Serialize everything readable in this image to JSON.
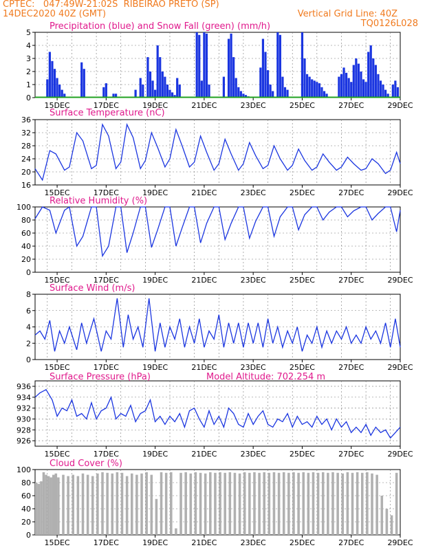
{
  "header": {
    "line1": "CPTEC:   047:49W-21:02S  RIBEIRAO PRETO (SP)",
    "line2": "14DEC2020 40Z (GMT)",
    "grid_note": "Vertical Grid Line: 40Z",
    "model_code": "TQ0126L028",
    "accent_color": "#f07a1e"
  },
  "colors": {
    "series": "#1a35e0",
    "title": "#e0198c",
    "snow": "#1fa01f",
    "cloud": "#b0b0b0"
  },
  "x_ticks": [
    "15DEC",
    "17DEC",
    "19DEC",
    "21DEC",
    "23DEC",
    "25DEC",
    "27DEC",
    "29DEC"
  ],
  "chart_data": [
    {
      "type": "bar",
      "title": "Precipitation (blue) and Snow Fall (green) (mm/h)",
      "x_range_days": [
        14.1,
        29.0
      ],
      "ylim": [
        0,
        5
      ],
      "yticks": [
        "5",
        "4",
        "3",
        "2",
        "1",
        "0"
      ],
      "grid": true,
      "series": [
        {
          "name": "Precipitation (blue)",
          "x": [
            14.6,
            14.7,
            14.8,
            14.9,
            15.0,
            15.1,
            15.2,
            15.3,
            16.0,
            16.1,
            16.9,
            17.0,
            17.3,
            17.4,
            18.2,
            18.4,
            18.5,
            18.7,
            18.8,
            18.9,
            19.0,
            19.1,
            19.2,
            19.3,
            19.4,
            19.5,
            19.6,
            19.7,
            19.8,
            19.9,
            20.0,
            20.7,
            20.8,
            20.9,
            21.0,
            21.1,
            21.2,
            21.8,
            22.0,
            22.1,
            22.2,
            22.3,
            22.4,
            22.5,
            22.6,
            22.7,
            22.8,
            23.3,
            23.4,
            23.5,
            23.6,
            23.7,
            23.8,
            24.0,
            24.1,
            24.2,
            24.3,
            24.4,
            25.0,
            25.1,
            25.2,
            25.3,
            25.4,
            25.5,
            25.6,
            25.7,
            25.8,
            25.9,
            26.0,
            26.5,
            26.6,
            26.7,
            26.8,
            26.9,
            27.0,
            27.1,
            27.2,
            27.3,
            27.4,
            27.5,
            27.6,
            27.7,
            27.8,
            27.9,
            28.0,
            28.1,
            28.2,
            28.3,
            28.4,
            28.5,
            28.7,
            28.8,
            28.9
          ],
          "values": [
            1.4,
            3.5,
            2.8,
            2.2,
            1.5,
            1.0,
            0.6,
            0.3,
            2.7,
            2.2,
            0.8,
            1.1,
            0.3,
            0.3,
            0.6,
            1.5,
            1.0,
            3.1,
            2.0,
            1.3,
            0.6,
            4.0,
            3.1,
            2.0,
            1.6,
            1.0,
            0.6,
            0.4,
            0.2,
            1.5,
            1.0,
            5.0,
            4.8,
            1.3,
            5.0,
            4.9,
            1.0,
            1.6,
            4.5,
            4.9,
            3.1,
            1.5,
            0.8,
            0.5,
            0.3,
            0.2,
            0.1,
            2.3,
            4.5,
            3.5,
            2.1,
            1.0,
            0.5,
            5.0,
            4.8,
            1.6,
            0.8,
            0.6,
            5.0,
            3.0,
            1.8,
            1.6,
            1.4,
            1.3,
            1.2,
            1.1,
            0.8,
            0.5,
            0.3,
            1.6,
            1.8,
            2.3,
            1.9,
            1.5,
            1.2,
            2.5,
            3.0,
            2.6,
            2.0,
            1.4,
            1.2,
            3.5,
            4.0,
            3.0,
            2.5,
            1.8,
            1.3,
            1.0,
            0.6,
            0.3,
            1.0,
            1.3,
            0.8
          ]
        },
        {
          "name": "Snow Fall (green)",
          "x": [
            14.1,
            29.0
          ],
          "values": [
            0,
            0
          ]
        }
      ]
    },
    {
      "type": "line",
      "title": "Surface Temperature (nC)",
      "x_range_days": [
        14.1,
        29.0
      ],
      "ylim": [
        16,
        36
      ],
      "yticks": [
        "36",
        "32",
        "28",
        "24",
        "20",
        "16"
      ],
      "grid": true,
      "series": [
        {
          "name": "",
          "x": [
            14.1,
            14.4,
            14.7,
            14.95,
            15.3,
            15.5,
            15.8,
            16.05,
            16.4,
            16.6,
            16.85,
            17.1,
            17.4,
            17.6,
            17.85,
            18.1,
            18.4,
            18.6,
            18.85,
            19.1,
            19.4,
            19.6,
            19.85,
            20.1,
            20.4,
            20.6,
            20.85,
            21.1,
            21.4,
            21.6,
            21.85,
            22.1,
            22.4,
            22.6,
            22.85,
            23.1,
            23.4,
            23.6,
            23.85,
            24.1,
            24.4,
            24.6,
            24.85,
            25.1,
            25.4,
            25.6,
            25.85,
            26.1,
            26.4,
            26.6,
            26.85,
            27.1,
            27.4,
            27.6,
            27.85,
            28.1,
            28.4,
            28.6,
            28.85,
            29.0
          ],
          "values": [
            21,
            17.5,
            26.5,
            25.5,
            20.5,
            21.5,
            32,
            29.5,
            21,
            22,
            34.5,
            31,
            21,
            23,
            34.5,
            30.5,
            21,
            23.5,
            32,
            27.5,
            21.5,
            24,
            33,
            28,
            21.5,
            23,
            31,
            26,
            20.5,
            22.5,
            30,
            25.5,
            20.5,
            22.5,
            29,
            25,
            21,
            22,
            28,
            24,
            20.5,
            22,
            27,
            23.5,
            20.5,
            21.5,
            25.5,
            23,
            20.5,
            21.5,
            24.5,
            22.5,
            20.5,
            21,
            24,
            22.5,
            19.5,
            20.5,
            26,
            22.5
          ]
        }
      ]
    },
    {
      "type": "line",
      "title": "Relative Humidity (%)",
      "x_range_days": [
        14.1,
        29.0
      ],
      "ylim": [
        0,
        100
      ],
      "yticks": [
        "100",
        "80",
        "60",
        "40",
        "20",
        "0"
      ],
      "grid": true,
      "series": [
        {
          "name": "",
          "x": [
            14.1,
            14.4,
            14.7,
            14.95,
            15.3,
            15.5,
            15.8,
            16.05,
            16.4,
            16.6,
            16.85,
            17.1,
            17.4,
            17.6,
            17.85,
            18.1,
            18.4,
            18.6,
            18.85,
            19.1,
            19.4,
            19.6,
            19.85,
            20.1,
            20.4,
            20.6,
            20.85,
            21.1,
            21.4,
            21.6,
            21.85,
            22.1,
            22.4,
            22.6,
            22.85,
            23.1,
            23.4,
            23.6,
            23.85,
            24.1,
            24.4,
            24.6,
            24.85,
            25.1,
            25.4,
            25.6,
            25.85,
            26.1,
            26.4,
            26.6,
            26.85,
            27.1,
            27.4,
            27.6,
            27.85,
            28.1,
            28.4,
            28.6,
            28.85,
            29.0
          ],
          "values": [
            82,
            100,
            95,
            60,
            95,
            100,
            40,
            55,
            100,
            100,
            25,
            40,
            100,
            100,
            30,
            60,
            100,
            100,
            38,
            65,
            100,
            100,
            40,
            68,
            100,
            100,
            45,
            75,
            100,
            100,
            50,
            75,
            100,
            100,
            52,
            78,
            100,
            100,
            55,
            85,
            100,
            100,
            65,
            88,
            100,
            100,
            80,
            92,
            100,
            100,
            85,
            94,
            100,
            100,
            80,
            90,
            100,
            100,
            62,
            95
          ]
        }
      ]
    },
    {
      "type": "line",
      "title": "Surface Wind (m/s)",
      "x_range_days": [
        14.1,
        29.0
      ],
      "ylim": [
        0,
        8
      ],
      "yticks": [
        "8",
        "6",
        "4",
        "2",
        "0"
      ],
      "grid": true,
      "series": [
        {
          "name": "",
          "x": [
            14.1,
            14.3,
            14.5,
            14.7,
            14.9,
            15.1,
            15.3,
            15.5,
            15.8,
            16.0,
            16.2,
            16.5,
            16.8,
            17.0,
            17.2,
            17.45,
            17.7,
            17.9,
            18.1,
            18.3,
            18.5,
            18.75,
            19.0,
            19.2,
            19.4,
            19.6,
            19.8,
            20.0,
            20.2,
            20.4,
            20.6,
            20.8,
            21.0,
            21.2,
            21.4,
            21.6,
            21.8,
            22.0,
            22.2,
            22.4,
            22.6,
            22.8,
            23.0,
            23.2,
            23.4,
            23.6,
            23.8,
            24.0,
            24.2,
            24.4,
            24.6,
            24.8,
            25.0,
            25.2,
            25.4,
            25.6,
            25.8,
            26.0,
            26.2,
            26.4,
            26.6,
            26.8,
            27.0,
            27.2,
            27.4,
            27.6,
            27.8,
            28.0,
            28.2,
            28.4,
            28.6,
            28.8,
            29.0
          ],
          "values": [
            3.0,
            3.5,
            2.5,
            4.8,
            1.0,
            3.5,
            2.0,
            4.0,
            1.2,
            4.5,
            2.0,
            5.0,
            1.0,
            3.5,
            2.5,
            7.5,
            1.5,
            5.5,
            2.5,
            4.0,
            1.5,
            7.5,
            1.0,
            4.5,
            1.5,
            4.0,
            2.5,
            5.0,
            1.5,
            4.0,
            2.0,
            5.0,
            1.5,
            3.5,
            2.5,
            5.5,
            1.5,
            4.5,
            2.0,
            4.5,
            1.5,
            4.5,
            2.0,
            4.5,
            1.5,
            5.0,
            2.0,
            4.0,
            1.5,
            3.5,
            2.0,
            4.0,
            1.0,
            3.0,
            2.0,
            4.0,
            1.5,
            3.5,
            2.0,
            3.5,
            2.5,
            4.0,
            2.0,
            3.0,
            2.0,
            4.0,
            2.5,
            3.5,
            2.0,
            4.5,
            1.5,
            5.0,
            1.5
          ]
        }
      ]
    },
    {
      "type": "line",
      "title": "Surface Pressure (hPa)",
      "annotation": "Model Altitude: 702.254 m",
      "x_range_days": [
        14.1,
        29.0
      ],
      "ylim": [
        925,
        937
      ],
      "yticks": [
        "936",
        "934",
        "932",
        "930",
        "928",
        "926"
      ],
      "grid": true,
      "series": [
        {
          "name": "",
          "x": [
            14.1,
            14.3,
            14.55,
            14.8,
            15.0,
            15.2,
            15.4,
            15.6,
            15.8,
            16.0,
            16.2,
            16.4,
            16.6,
            16.8,
            17.0,
            17.2,
            17.4,
            17.6,
            17.8,
            18.0,
            18.2,
            18.4,
            18.6,
            18.8,
            19.0,
            19.2,
            19.4,
            19.6,
            19.8,
            20.0,
            20.2,
            20.4,
            20.6,
            20.8,
            21.0,
            21.2,
            21.4,
            21.6,
            21.8,
            22.0,
            22.2,
            22.4,
            22.6,
            22.8,
            23.0,
            23.2,
            23.4,
            23.6,
            23.8,
            24.0,
            24.2,
            24.4,
            24.6,
            24.8,
            25.0,
            25.2,
            25.4,
            25.6,
            25.8,
            26.0,
            26.2,
            26.4,
            26.6,
            26.8,
            27.0,
            27.2,
            27.4,
            27.6,
            27.8,
            28.0,
            28.2,
            28.4,
            28.6,
            28.8,
            29.0
          ],
          "values": [
            934.0,
            934.8,
            935.4,
            933.5,
            930.5,
            932.0,
            931.5,
            933.5,
            930.5,
            931.0,
            930.0,
            933.0,
            930.0,
            931.5,
            932.0,
            934.0,
            930.0,
            931.0,
            930.5,
            932.5,
            929.5,
            931.0,
            931.5,
            933.5,
            929.5,
            930.5,
            929.0,
            930.5,
            929.5,
            931.0,
            928.5,
            931.5,
            932.0,
            930.0,
            928.5,
            931.5,
            929.0,
            930.5,
            928.5,
            932.0,
            931.0,
            929.0,
            928.5,
            931.0,
            929.0,
            930.5,
            931.5,
            929.0,
            928.5,
            930.0,
            929.5,
            931.0,
            928.5,
            930.5,
            929.0,
            929.5,
            928.5,
            930.5,
            929.0,
            930.0,
            928.0,
            930.0,
            928.5,
            929.5,
            927.5,
            928.5,
            927.5,
            929.0,
            927.0,
            928.5,
            927.5,
            928.0,
            926.5,
            927.5,
            928.5
          ]
        }
      ]
    },
    {
      "type": "bar",
      "title": "Cloud Cover (%)",
      "x_range_days": [
        14.1,
        29.0
      ],
      "ylim": [
        0,
        100
      ],
      "yticks": [
        "100",
        "80",
        "60",
        "40",
        "20",
        "0"
      ],
      "grid": true,
      "series": [
        {
          "name": "",
          "x": [
            14.1,
            14.2,
            14.3,
            14.4,
            14.5,
            14.6,
            14.7,
            14.8,
            14.9,
            15.0,
            15.2,
            15.4,
            15.6,
            15.8,
            16.0,
            16.2,
            16.4,
            16.6,
            16.8,
            17.0,
            17.2,
            17.4,
            17.6,
            17.8,
            18.0,
            18.2,
            18.4,
            18.6,
            18.8,
            19.0,
            19.2,
            19.4,
            19.6,
            19.8,
            20.0,
            20.2,
            20.4,
            20.6,
            20.8,
            21.0,
            21.2,
            21.4,
            21.6,
            21.8,
            22.0,
            22.2,
            22.4,
            22.6,
            22.8,
            23.0,
            23.2,
            23.4,
            23.6,
            23.8,
            24.0,
            24.2,
            24.4,
            24.6,
            24.8,
            25.0,
            25.2,
            25.4,
            25.6,
            25.8,
            26.0,
            26.2,
            26.4,
            26.6,
            26.8,
            27.0,
            27.2,
            27.4,
            27.6,
            27.8,
            28.0,
            28.2,
            28.4,
            28.6,
            28.8,
            29.0
          ],
          "values": [
            80,
            78,
            82,
            96,
            92,
            90,
            88,
            92,
            94,
            88,
            92,
            90,
            92,
            90,
            94,
            92,
            90,
            94,
            96,
            95,
            94,
            96,
            95,
            90,
            94,
            92,
            94,
            96,
            92,
            55,
            96,
            95,
            96,
            10,
            95,
            96,
            94,
            96,
            95,
            94,
            96,
            95,
            96,
            95,
            96,
            95,
            94,
            96,
            95,
            96,
            95,
            96,
            95,
            96,
            95,
            96,
            95,
            96,
            95,
            96,
            95,
            96,
            95,
            96,
            95,
            96,
            95,
            94,
            96,
            95,
            96,
            95,
            96,
            94,
            92,
            60,
            40,
            30,
            95,
            92
          ]
        }
      ]
    }
  ]
}
